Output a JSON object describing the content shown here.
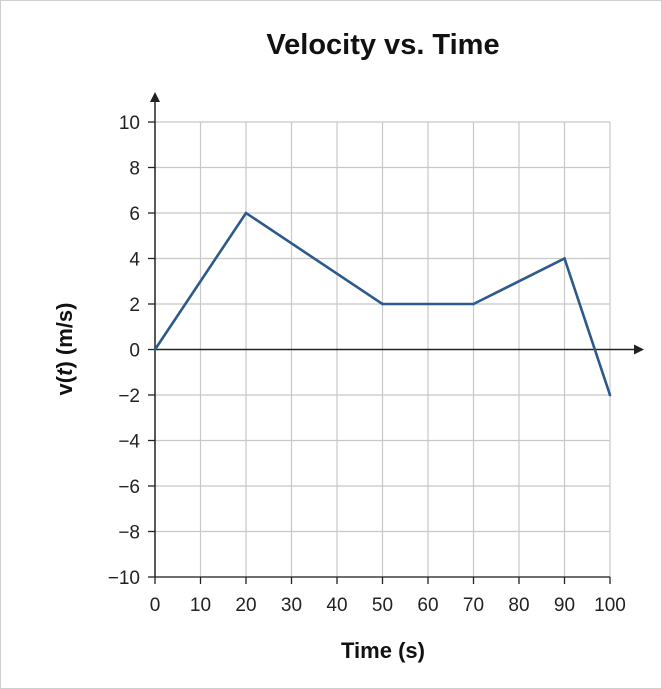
{
  "chart_data": {
    "type": "line",
    "title": "Velocity vs. Time",
    "xlabel": "Time (s)",
    "ylabel_prefix": "v(",
    "ylabel_var": "t",
    "ylabel_suffix": ") (m/s)",
    "xlim": [
      0,
      100
    ],
    "ylim": [
      -10,
      10
    ],
    "x_ticks": [
      0,
      10,
      20,
      30,
      40,
      50,
      60,
      70,
      80,
      90,
      100
    ],
    "y_ticks": [
      10,
      8,
      6,
      4,
      2,
      0,
      -2,
      -4,
      -6,
      -8,
      -10
    ],
    "x_tick_labels": [
      "0",
      "10",
      "20",
      "30",
      "40",
      "50",
      "60",
      "70",
      "80",
      "90",
      "100"
    ],
    "y_tick_labels": [
      "10",
      "8",
      "6",
      "4",
      "2",
      "0",
      "−2",
      "−4",
      "−6",
      "−8",
      "−10"
    ],
    "grid": true,
    "legend": "none",
    "series": [
      {
        "x": [
          0,
          20,
          50,
          70,
          90,
          100
        ],
        "y": [
          0,
          6,
          2,
          2,
          4,
          -2
        ],
        "color": "#2c5a8c"
      }
    ],
    "colors": {
      "line": "#2c5a8c",
      "grid": "#c8c8c8",
      "axis": "#222222"
    }
  }
}
